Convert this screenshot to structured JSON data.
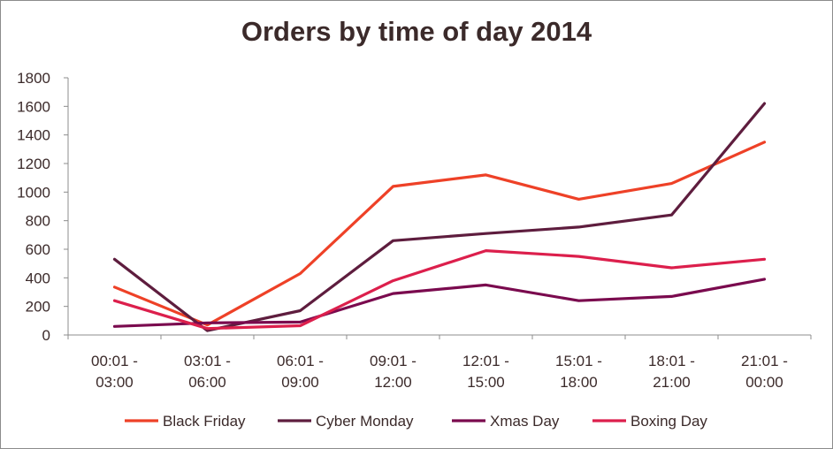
{
  "chart_data": {
    "type": "line",
    "title": "Orders by time of day 2014",
    "xlabel": "",
    "ylabel": "",
    "ylim": [
      0,
      1800
    ],
    "yticks": [
      0,
      200,
      400,
      600,
      800,
      1000,
      1200,
      1400,
      1600,
      1800
    ],
    "categories": [
      [
        "00:01 -",
        "03:00"
      ],
      [
        "03:01 -",
        "06:00"
      ],
      [
        "06:01 -",
        "09:00"
      ],
      [
        "09:01 -",
        "12:00"
      ],
      [
        "12:01 -",
        "15:00"
      ],
      [
        "15:01 -",
        "18:00"
      ],
      [
        "18:01 -",
        "21:00"
      ],
      [
        "21:01 -",
        "00:00"
      ]
    ],
    "grid": false,
    "legend_position": "bottom",
    "series": [
      {
        "name": "Black Friday",
        "color": "#ee4127",
        "values": [
          335,
          70,
          430,
          1040,
          1120,
          950,
          1060,
          1350
        ]
      },
      {
        "name": "Cyber Monday",
        "color": "#5e1d3e",
        "values": [
          530,
          30,
          170,
          660,
          710,
          755,
          840,
          1620
        ]
      },
      {
        "name": "Xmas Day",
        "color": "#7a0a4e",
        "values": [
          60,
          85,
          90,
          290,
          350,
          240,
          270,
          390
        ]
      },
      {
        "name": "Boxing Day",
        "color": "#dc1f4c",
        "values": [
          240,
          45,
          65,
          380,
          590,
          550,
          470,
          530
        ]
      }
    ]
  }
}
